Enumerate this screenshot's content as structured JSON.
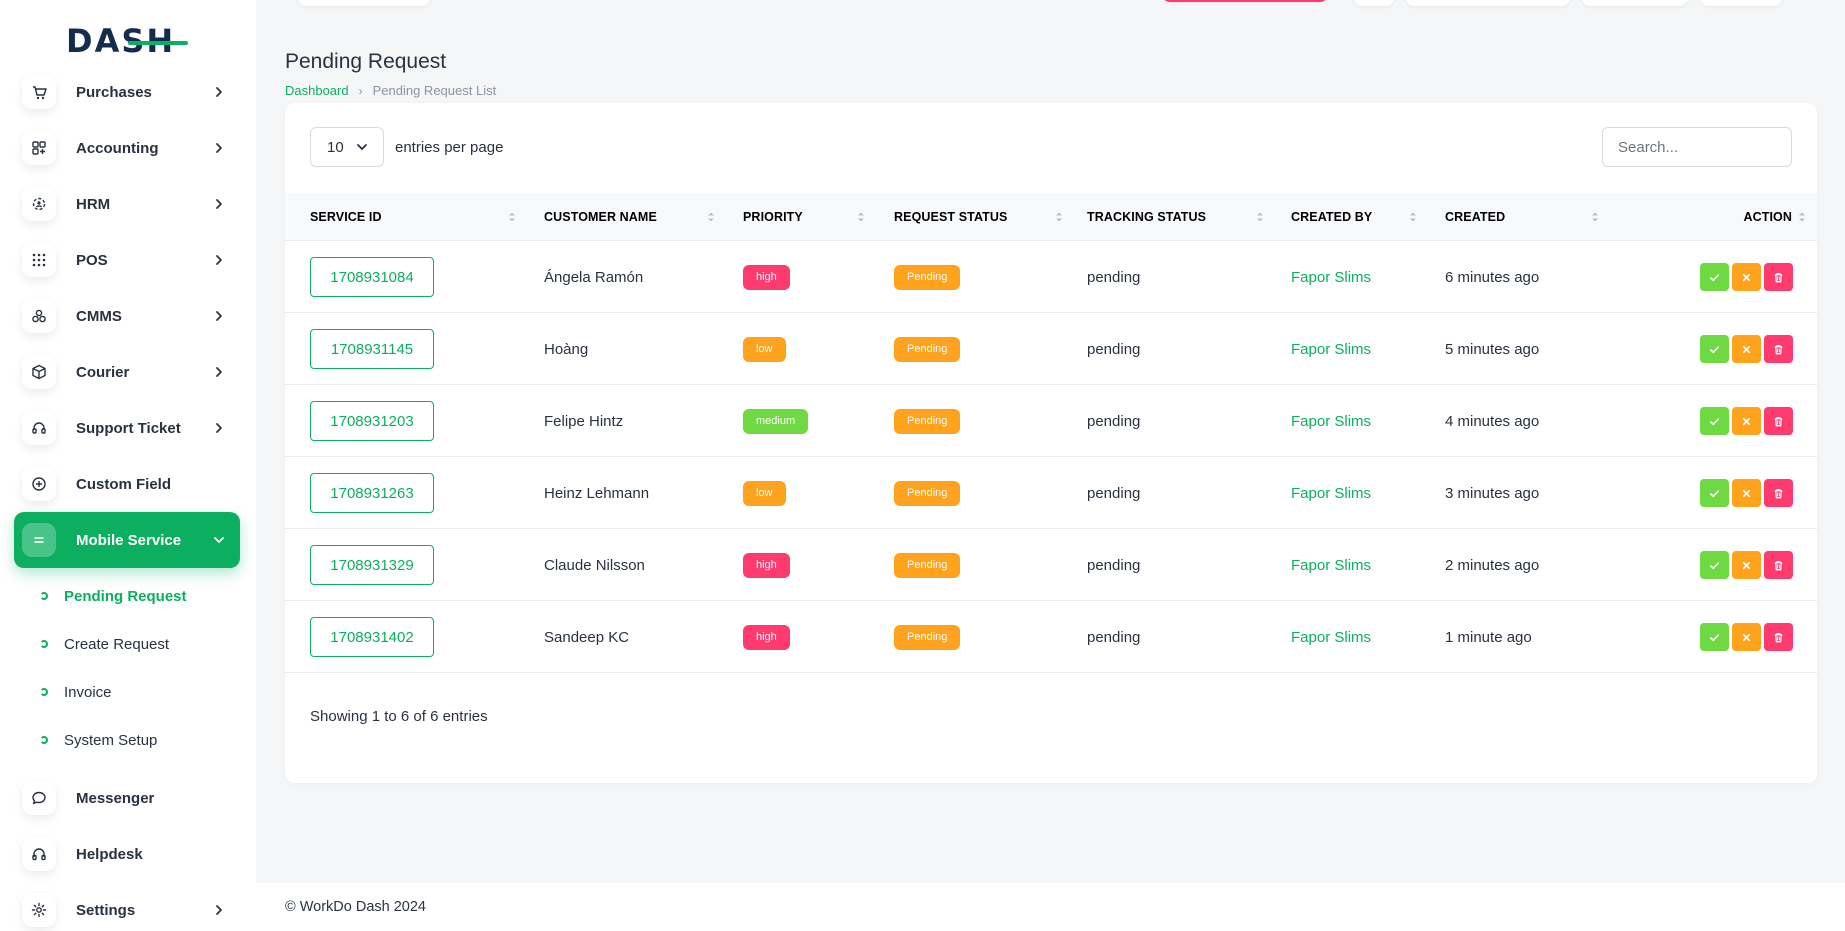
{
  "brand": {
    "logo_text": "DASH"
  },
  "sidebar": {
    "items": [
      {
        "label": "Purchases",
        "icon": "cart-icon",
        "has_chevron": true
      },
      {
        "label": "Accounting",
        "icon": "grid-plus-icon",
        "has_chevron": true
      },
      {
        "label": "HRM",
        "icon": "users-cog-icon",
        "has_chevron": true
      },
      {
        "label": "POS",
        "icon": "dots-grid-icon",
        "has_chevron": true
      },
      {
        "label": "CMMS",
        "icon": "circles-icon",
        "has_chevron": true
      },
      {
        "label": "Courier",
        "icon": "box-icon",
        "has_chevron": true
      },
      {
        "label": "Support Ticket",
        "icon": "headset-icon",
        "has_chevron": true
      },
      {
        "label": "Custom Field",
        "icon": "plus-circle-icon",
        "has_chevron": false
      },
      {
        "label": "Mobile Service",
        "icon": "list-icon",
        "has_chevron": true,
        "active": true
      }
    ],
    "subitems": [
      {
        "label": "Pending Request",
        "active": true
      },
      {
        "label": "Create Request"
      },
      {
        "label": "Invoice"
      },
      {
        "label": "System Setup"
      }
    ],
    "bottom_items": [
      {
        "label": "Messenger",
        "icon": "chat-icon",
        "has_chevron": false
      },
      {
        "label": "Helpdesk",
        "icon": "headphones-icon",
        "has_chevron": false
      },
      {
        "label": "Settings",
        "icon": "gear-icon",
        "has_chevron": true
      }
    ]
  },
  "page": {
    "title": "Pending Request",
    "breadcrumb": {
      "home": "Dashboard",
      "current": "Pending Request List"
    }
  },
  "table": {
    "entries_value": "10",
    "entries_label": "entries per page",
    "search_placeholder": "Search...",
    "columns": [
      "SERVICE ID",
      "CUSTOMER NAME",
      "PRIORITY",
      "REQUEST STATUS",
      "TRACKING STATUS",
      "CREATED BY",
      "CREATED",
      "ACTION"
    ],
    "rows": [
      {
        "service_id": "1708931084",
        "customer": "Ángela Ramón",
        "priority": "high",
        "request_status": "Pending",
        "tracking_status": "pending",
        "created_by": "Fapor Slims",
        "created": "6 minutes ago"
      },
      {
        "service_id": "1708931145",
        "customer": "Hoàng",
        "priority": "low",
        "request_status": "Pending",
        "tracking_status": "pending",
        "created_by": "Fapor Slims",
        "created": "5 minutes ago"
      },
      {
        "service_id": "1708931203",
        "customer": "Felipe Hintz",
        "priority": "medium",
        "request_status": "Pending",
        "tracking_status": "pending",
        "created_by": "Fapor Slims",
        "created": "4 minutes ago"
      },
      {
        "service_id": "1708931263",
        "customer": "Heinz Lehmann",
        "priority": "low",
        "request_status": "Pending",
        "tracking_status": "pending",
        "created_by": "Fapor Slims",
        "created": "3 minutes ago"
      },
      {
        "service_id": "1708931329",
        "customer": "Claude Nilsson",
        "priority": "high",
        "request_status": "Pending",
        "tracking_status": "pending",
        "created_by": "Fapor Slims",
        "created": "2 minutes ago"
      },
      {
        "service_id": "1708931402",
        "customer": "Sandeep KC",
        "priority": "high",
        "request_status": "Pending",
        "tracking_status": "pending",
        "created_by": "Fapor Slims",
        "created": "1 minute ago"
      }
    ],
    "showing": "Showing 1 to 6 of 6 entries"
  },
  "colors": {
    "accent": "#0caf60",
    "high": "#ff3a6e",
    "low": "#ffa21d",
    "medium": "#6fd943",
    "pending": "#ffa21d",
    "approve": "#6fd943",
    "reject": "#ffa21d",
    "delete": "#ff3a6e"
  },
  "footer": {
    "text": "© WorkDo Dash 2024"
  }
}
